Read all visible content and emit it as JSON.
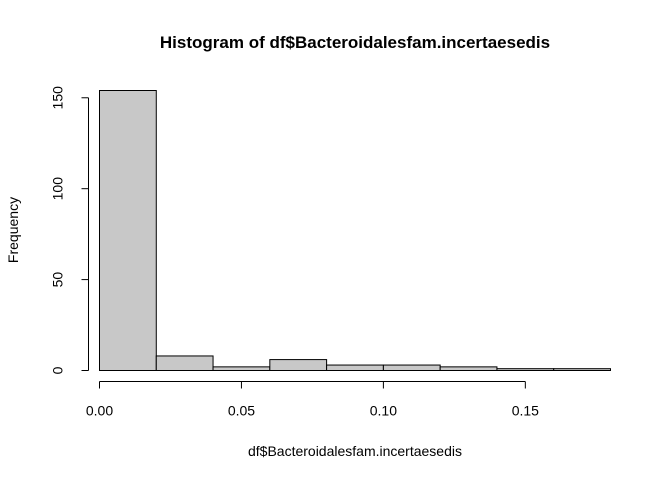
{
  "chart_data": {
    "type": "bar",
    "title": "Histogram of df$Bacteroidalesfam.incertaesedis",
    "xlabel": "df$Bacteroidalesfam.incertaesedis",
    "ylabel": "Frequency",
    "bins": [
      {
        "start": 0.0,
        "end": 0.02,
        "count": 154
      },
      {
        "start": 0.02,
        "end": 0.04,
        "count": 8
      },
      {
        "start": 0.04,
        "end": 0.06,
        "count": 2
      },
      {
        "start": 0.06,
        "end": 0.08,
        "count": 6
      },
      {
        "start": 0.08,
        "end": 0.1,
        "count": 3
      },
      {
        "start": 0.1,
        "end": 0.12,
        "count": 3
      },
      {
        "start": 0.12,
        "end": 0.14,
        "count": 2
      },
      {
        "start": 0.14,
        "end": 0.16,
        "count": 1
      },
      {
        "start": 0.16,
        "end": 0.18,
        "count": 1
      }
    ],
    "xlim": [
      0.0,
      0.18
    ],
    "ylim": [
      0,
      154
    ],
    "xticks": [
      0.0,
      0.05,
      0.1,
      0.15
    ],
    "xtick_labels": [
      "0.00",
      "0.05",
      "0.10",
      "0.15"
    ],
    "yticks": [
      0,
      50,
      100,
      150
    ],
    "ytick_labels": [
      "0",
      "50",
      "100",
      "150"
    ],
    "grid": false,
    "bar_fill": "#c8c8c8",
    "bar_stroke": "#000000"
  }
}
